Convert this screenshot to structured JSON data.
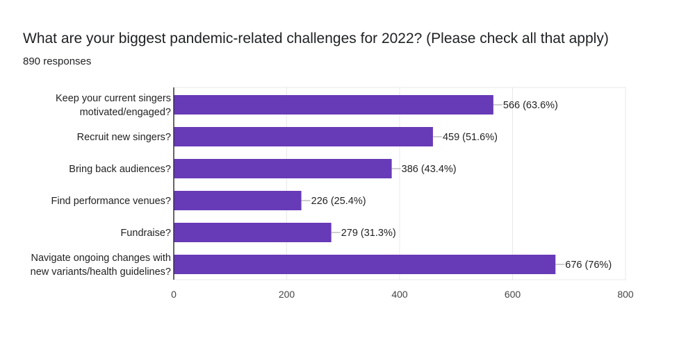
{
  "chart": {
    "title": "What are your biggest pandemic-related challenges for 2022? (Please check all that apply)",
    "subtitle": "890 responses"
  },
  "colors": {
    "bar": "#673ab7",
    "grid": "#e8e8e8",
    "axis": "#333333",
    "connector": "#9e9e9e"
  },
  "chart_data": {
    "type": "bar",
    "orientation": "horizontal",
    "title": "What are your biggest pandemic-related challenges for 2022? (Please check all that apply)",
    "subtitle": "890 responses",
    "categories": [
      [
        "Keep your current singers",
        "motivated/engaged?"
      ],
      [
        "Recruit new singers?"
      ],
      [
        "Bring back audiences?"
      ],
      [
        "Find performance venues?"
      ],
      [
        "Fundraise?"
      ],
      [
        "Navigate ongoing changes with",
        "new variants/health guidelines?"
      ]
    ],
    "values": [
      566,
      459,
      386,
      226,
      279,
      676
    ],
    "data_labels": [
      "566 (63.6%)",
      "459 (51.6%)",
      "386 (43.4%)",
      "226 (25.4%)",
      "279 (31.3%)",
      "676 (76%)"
    ],
    "xlim": [
      0,
      800
    ],
    "xticks": [
      0,
      200,
      400,
      600,
      800
    ],
    "xtick_labels": [
      "0",
      "200",
      "400",
      "600",
      "800"
    ],
    "xlabel": "",
    "ylabel": "",
    "grid": true,
    "legend": "none"
  }
}
